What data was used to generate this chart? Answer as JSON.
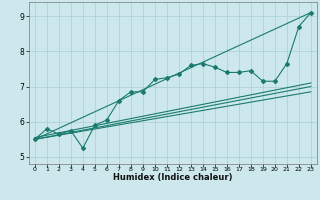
{
  "xlabel": "Humidex (Indice chaleur)",
  "bg_color": "#cce8ec",
  "line_color": "#1a7a6e",
  "grid_color": "#aacfd4",
  "xlim": [
    -0.5,
    23.5
  ],
  "ylim": [
    4.8,
    9.4
  ],
  "xticks": [
    0,
    1,
    2,
    3,
    4,
    5,
    6,
    7,
    8,
    9,
    10,
    11,
    12,
    13,
    14,
    15,
    16,
    17,
    18,
    19,
    20,
    21,
    22,
    23
  ],
  "yticks": [
    5,
    6,
    7,
    8,
    9
  ],
  "series_main": {
    "x": [
      0,
      1,
      2,
      3,
      4,
      5,
      6,
      7,
      8,
      9,
      10,
      11,
      12,
      13,
      14,
      15,
      16,
      17,
      18,
      19,
      20,
      21,
      22,
      23
    ],
    "y": [
      5.5,
      5.8,
      5.65,
      5.75,
      5.25,
      5.9,
      6.05,
      6.6,
      6.85,
      6.85,
      7.2,
      7.25,
      7.35,
      7.6,
      7.65,
      7.55,
      7.4,
      7.4,
      7.45,
      7.15,
      7.15,
      7.65,
      8.7,
      9.1
    ]
  },
  "series_diagonal": {
    "x": [
      0,
      23
    ],
    "y": [
      5.5,
      9.1
    ]
  },
  "series_flat1": {
    "x": [
      0,
      23
    ],
    "y": [
      5.5,
      7.0
    ]
  },
  "series_flat2": {
    "x": [
      0,
      23
    ],
    "y": [
      5.5,
      6.85
    ]
  },
  "series_flat3": {
    "x": [
      0,
      23
    ],
    "y": [
      5.55,
      7.1
    ]
  }
}
